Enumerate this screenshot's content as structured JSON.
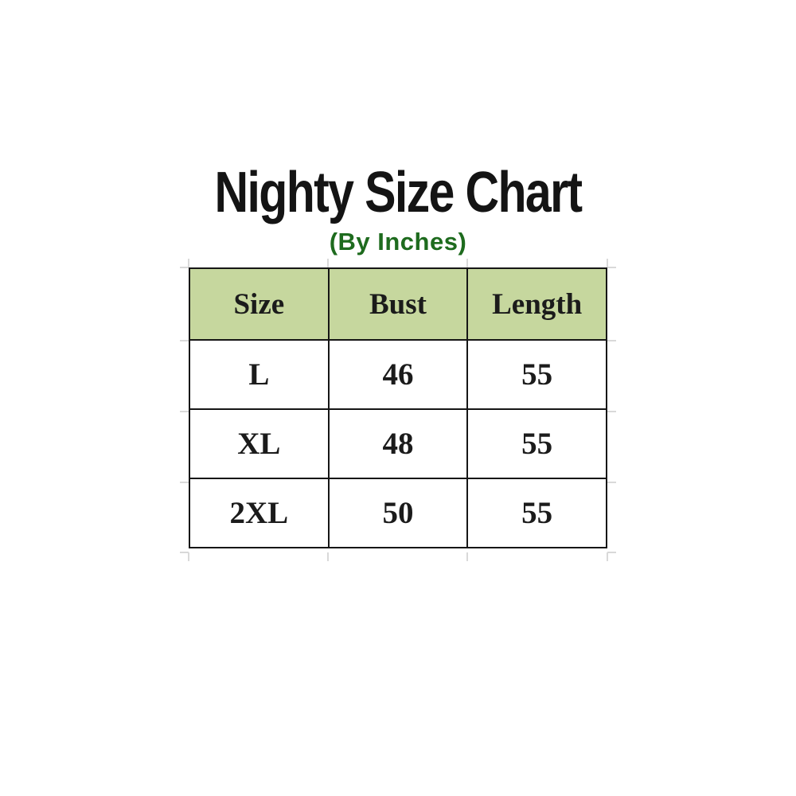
{
  "page": {
    "title": "Nighty Size Chart",
    "subtitle": "(By Inches)"
  },
  "colors": {
    "title_text": "#141414",
    "subtitle_green": "#1e6b1e",
    "header_fill": "#c6d79e",
    "border": "#161616",
    "cell_text": "#1b1b1b",
    "gridline_stub": "#d9d9d9"
  },
  "chart_data": {
    "type": "table",
    "title": "Nighty Size Chart",
    "subtitle": "(By Inches)",
    "unit": "Inches",
    "columns": [
      "Size",
      "Bust",
      "Length"
    ],
    "rows": [
      [
        "L",
        "46",
        "55"
      ],
      [
        "XL",
        "48",
        "55"
      ],
      [
        "2XL",
        "50",
        "55"
      ]
    ]
  }
}
